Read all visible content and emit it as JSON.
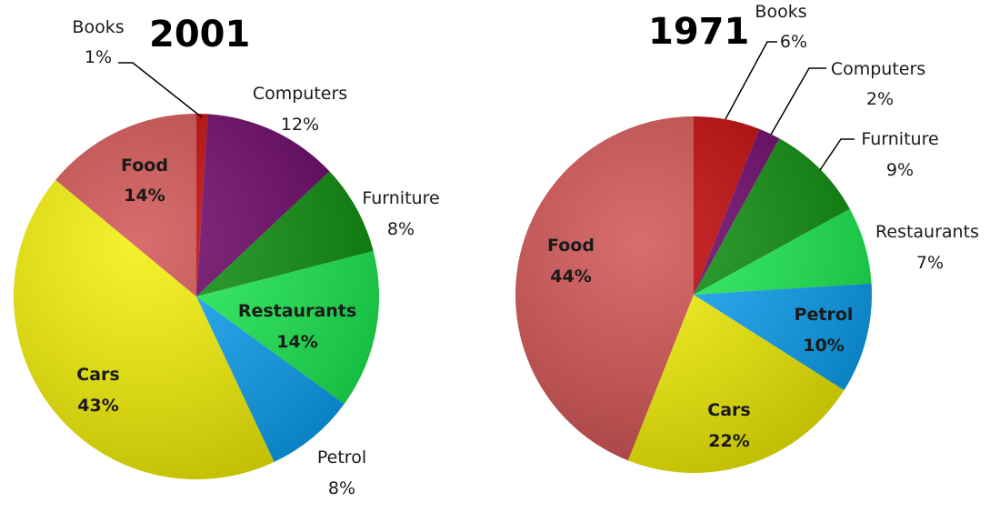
{
  "chart_data": [
    {
      "type": "pie",
      "title": "2001",
      "slices": [
        {
          "label": "Books",
          "value": 1,
          "value_label": "1%",
          "color": "#c00000"
        },
        {
          "label": "Computers",
          "value": 12,
          "value_label": "12%",
          "color": "#6a0066"
        },
        {
          "label": "Furniture",
          "value": 8,
          "value_label": "8%",
          "color": "#0a8f0a"
        },
        {
          "label": "Restaurants",
          "value": 14,
          "value_label": "14%",
          "color": "#19ee50"
        },
        {
          "label": "Petrol",
          "value": 8,
          "value_label": "8%",
          "color": "#0aa2f5"
        },
        {
          "label": "Cars",
          "value": 43,
          "value_label": "43%",
          "color": "#f3ef00"
        },
        {
          "label": "Food",
          "value": 14,
          "value_label": "14%",
          "color": "#cf4d4d"
        }
      ]
    },
    {
      "type": "pie",
      "title": "1971",
      "slices": [
        {
          "label": "Books",
          "value": 6,
          "value_label": "6%",
          "color": "#c00000"
        },
        {
          "label": "Computers",
          "value": 2,
          "value_label": "2%",
          "color": "#6a0066"
        },
        {
          "label": "Furniture",
          "value": 9,
          "value_label": "9%",
          "color": "#0a8f0a"
        },
        {
          "label": "Restaurants",
          "value": 7,
          "value_label": "7%",
          "color": "#19ee50"
        },
        {
          "label": "Petrol",
          "value": 10,
          "value_label": "10%",
          "color": "#0aa2f5"
        },
        {
          "label": "Cars",
          "value": 22,
          "value_label": "22%",
          "color": "#f3ef00"
        },
        {
          "label": "Food",
          "value": 44,
          "value_label": "44%",
          "color": "#cf4d4d"
        }
      ]
    }
  ]
}
